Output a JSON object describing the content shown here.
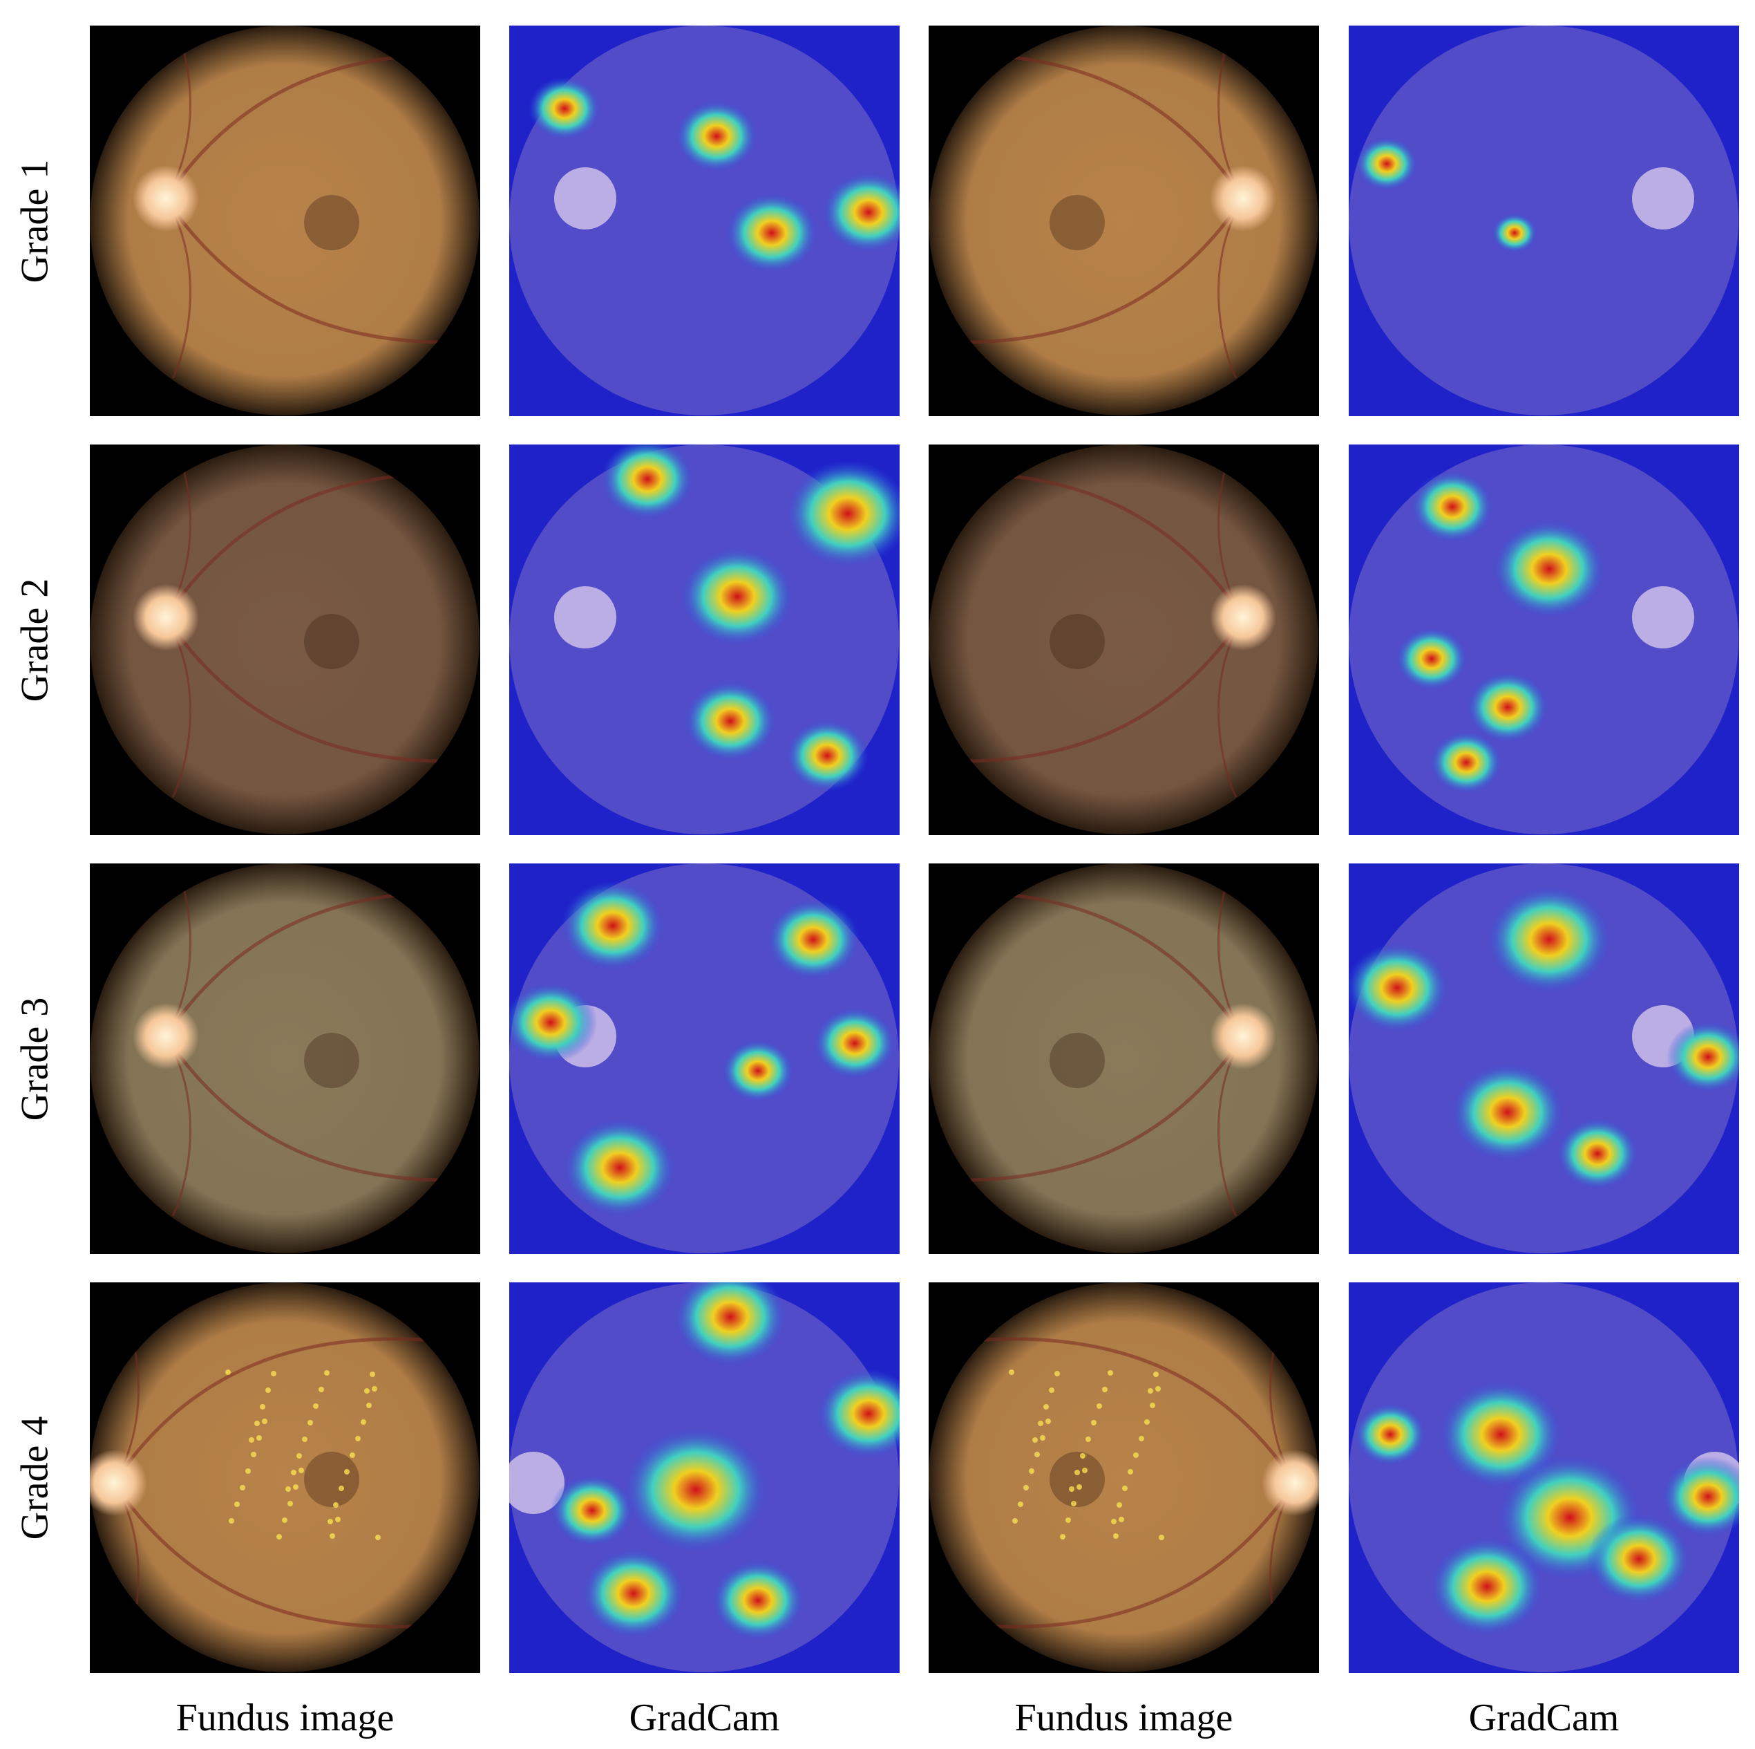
{
  "columns": [
    {
      "label": "Fundus image",
      "kind": "fundus"
    },
    {
      "label": "GradCam",
      "kind": "gradcam"
    },
    {
      "label": "Fundus image",
      "kind": "fundus"
    },
    {
      "label": "GradCam",
      "kind": "gradcam"
    }
  ],
  "rows": [
    {
      "label": "Grade 1",
      "tone": "orange"
    },
    {
      "label": "Grade 2",
      "tone": "dark"
    },
    {
      "label": "Grade 3",
      "tone": "olive"
    },
    {
      "label": "Grade 4",
      "tone": "orange"
    }
  ],
  "colors": {
    "background": "#000000",
    "heatmap_base": "#1e22c8",
    "fundus_orange": "#b8834a",
    "fundus_dark": "#7a5a44",
    "fundus_olive": "#8a7a5a",
    "optic_disc": "#f6c79a"
  }
}
